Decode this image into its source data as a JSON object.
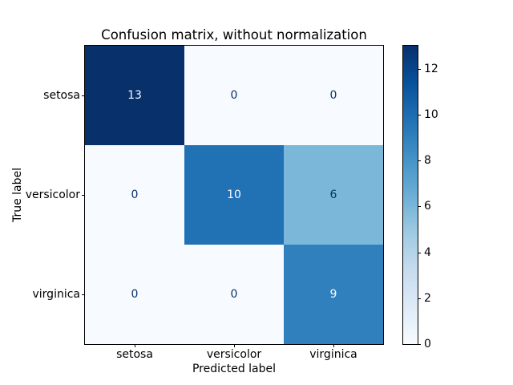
{
  "chart_data": {
    "type": "heatmap",
    "title": "Confusion matrix, without normalization",
    "xlabel": "Predicted label",
    "ylabel": "True label",
    "categories": [
      "setosa",
      "versicolor",
      "virginica"
    ],
    "matrix": [
      [
        13,
        0,
        0
      ],
      [
        0,
        10,
        6
      ],
      [
        0,
        0,
        9
      ]
    ],
    "vmin": 0,
    "vmax": 13,
    "colormap": "Blues",
    "grid": false,
    "cell_colors": [
      [
        "#08306b",
        "#f7fbff",
        "#f7fbff"
      ],
      [
        "#f7fbff",
        "#2171b5",
        "#7bb7d9"
      ],
      [
        "#f7fbff",
        "#f7fbff",
        "#3080bd"
      ]
    ],
    "cell_text_colors": [
      [
        "#f7fbff",
        "#08306b",
        "#08306b"
      ],
      [
        "#08306b",
        "#f7fbff",
        "#08306b"
      ],
      [
        "#08306b",
        "#08306b",
        "#f7fbff"
      ]
    ],
    "colorbar": {
      "position": "right",
      "ticks": [
        0,
        2,
        4,
        6,
        8,
        10,
        12
      ],
      "gradient_stops": [
        {
          "pos": 0.0,
          "color": "#f7fbff"
        },
        {
          "pos": 0.125,
          "color": "#deebf7"
        },
        {
          "pos": 0.25,
          "color": "#c6dbef"
        },
        {
          "pos": 0.375,
          "color": "#9ecae1"
        },
        {
          "pos": 0.5,
          "color": "#6baed6"
        },
        {
          "pos": 0.625,
          "color": "#4292c6"
        },
        {
          "pos": 0.75,
          "color": "#2171b5"
        },
        {
          "pos": 0.875,
          "color": "#08519c"
        },
        {
          "pos": 1.0,
          "color": "#08306b"
        }
      ]
    }
  }
}
